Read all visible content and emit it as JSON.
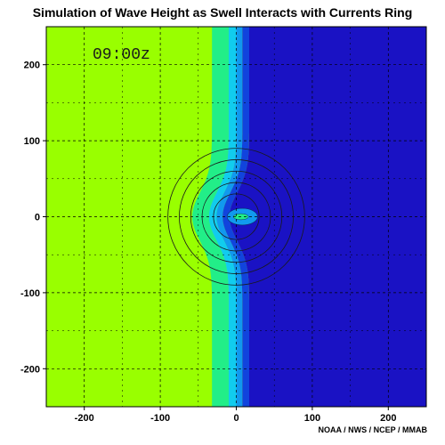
{
  "title": "Simulation of Wave Height as Swell Interacts with Currents Ring",
  "credit": "NOAA / NWS / NCEP / MMAB",
  "time_label": "09:00z",
  "chart_data": {
    "type": "heatmap",
    "title": "Simulation of Wave Height as Swell Interacts with Currents Ring",
    "xlim": [
      -250,
      250
    ],
    "ylim": [
      -250,
      250
    ],
    "x_ticks": [
      -200,
      -100,
      0,
      100,
      200
    ],
    "y_ticks": [
      200,
      100,
      0,
      -100,
      -200
    ],
    "grid": true,
    "colors": {
      "background_field": "#99ff00",
      "band_1": "#22ee88",
      "band_2": "#11ccee",
      "band_3": "#1199ee",
      "band_4": "#1144dd",
      "open_water": "#1a12c4"
    },
    "current_ring": {
      "center": [
        0,
        0
      ],
      "radii": [
        30,
        45,
        60,
        75,
        90
      ]
    },
    "bands": [
      {
        "color_key": "band_1",
        "x_from": -32,
        "x_to": -10
      },
      {
        "color_key": "band_2",
        "x_from": -10,
        "x_to": 0
      },
      {
        "color_key": "band_3",
        "x_from": 0,
        "x_to": 8
      },
      {
        "color_key": "band_4",
        "x_from": 8,
        "x_to": 17
      },
      {
        "color_key": "open_water",
        "x_from": 17,
        "x_to": 250
      }
    ]
  }
}
